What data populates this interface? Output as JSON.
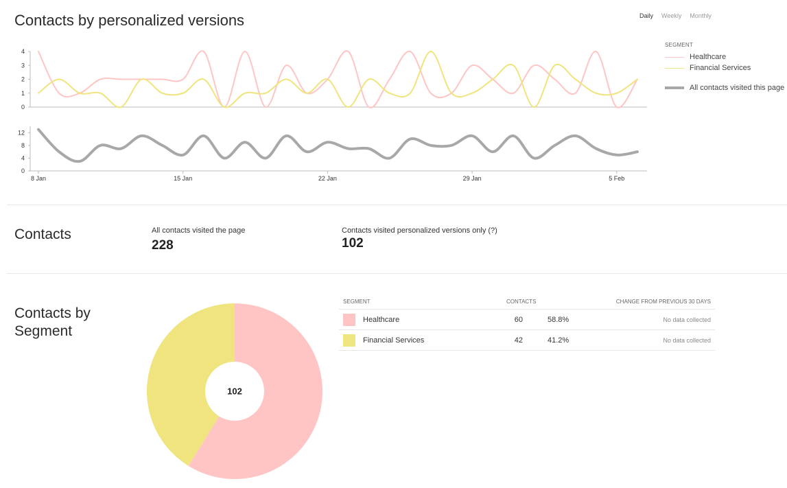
{
  "header": {
    "title": "Contacts by personalized versions",
    "periods": [
      {
        "label": "Daily",
        "active": true
      },
      {
        "label": "Weekly",
        "active": false
      },
      {
        "label": "Monthly",
        "active": false
      }
    ]
  },
  "legend": {
    "title": "SEGMENT",
    "healthcare": "Healthcare",
    "financial": "Financial Services",
    "all_contacts": "All contacts visited this page"
  },
  "colors": {
    "healthcare": "#ffc5c5",
    "financial": "#efe47d",
    "all_contacts": "#a8a8a8"
  },
  "chart_data": [
    {
      "type": "line",
      "x": [
        "8 Jan",
        "9 Jan",
        "10 Jan",
        "11 Jan",
        "12 Jan",
        "13 Jan",
        "14 Jan",
        "15 Jan",
        "16 Jan",
        "17 Jan",
        "18 Jan",
        "19 Jan",
        "20 Jan",
        "21 Jan",
        "22 Jan",
        "23 Jan",
        "24 Jan",
        "25 Jan",
        "26 Jan",
        "27 Jan",
        "28 Jan",
        "29 Jan",
        "30 Jan",
        "31 Jan",
        "1 Feb",
        "2 Feb",
        "3 Feb",
        "4 Feb",
        "5 Feb",
        "6 Feb"
      ],
      "x_ticks": [
        "8 Jan",
        "15 Jan",
        "22 Jan",
        "29 Jan",
        "5 Feb"
      ],
      "y_ticks": [
        0,
        1,
        2,
        3,
        4
      ],
      "ylim": [
        0,
        4
      ],
      "series": [
        {
          "name": "Healthcare",
          "values": [
            4,
            1,
            1,
            2,
            2,
            2,
            2,
            2,
            4,
            0,
            4,
            0,
            3,
            1,
            2,
            4,
            0,
            2,
            4,
            1,
            1,
            3,
            2,
            1,
            3,
            2,
            1,
            4,
            0,
            2
          ]
        },
        {
          "name": "Financial Services",
          "values": [
            1,
            2,
            1,
            1,
            0,
            2,
            1,
            1,
            2,
            0,
            1,
            1,
            2,
            1,
            2,
            0,
            2,
            1,
            1,
            4,
            1,
            1,
            2,
            3,
            0,
            3,
            2,
            1,
            1,
            2
          ]
        }
      ]
    },
    {
      "type": "line",
      "x": [
        "8 Jan",
        "9 Jan",
        "10 Jan",
        "11 Jan",
        "12 Jan",
        "13 Jan",
        "14 Jan",
        "15 Jan",
        "16 Jan",
        "17 Jan",
        "18 Jan",
        "19 Jan",
        "20 Jan",
        "21 Jan",
        "22 Jan",
        "23 Jan",
        "24 Jan",
        "25 Jan",
        "26 Jan",
        "27 Jan",
        "28 Jan",
        "29 Jan",
        "30 Jan",
        "31 Jan",
        "1 Feb",
        "2 Feb",
        "3 Feb",
        "4 Feb",
        "5 Feb",
        "6 Feb"
      ],
      "x_ticks": [
        "8 Jan",
        "15 Jan",
        "22 Jan",
        "29 Jan",
        "5 Feb"
      ],
      "y_ticks": [
        0,
        4,
        8,
        12
      ],
      "ylim": [
        0,
        14
      ],
      "series": [
        {
          "name": "All contacts visited this page",
          "values": [
            13,
            6,
            3,
            8,
            7,
            11,
            8,
            5,
            11,
            4,
            9,
            4,
            11,
            6,
            9,
            7,
            7,
            4,
            10,
            8,
            8,
            11,
            6,
            11,
            4,
            8,
            11,
            7,
            5,
            6
          ]
        }
      ]
    },
    {
      "type": "pie",
      "center_label": "102",
      "categories": [
        "Healthcare",
        "Financial Services"
      ],
      "values": [
        60,
        42
      ]
    }
  ],
  "contacts": {
    "title": "Contacts",
    "all_label": "All contacts visited the page",
    "all_value": "228",
    "personalized_label": "Contacts visited personalized versions only (?)",
    "personalized_value": "102"
  },
  "segment": {
    "title": "Contacts by Segment",
    "col_segment": "SEGMENT",
    "col_contacts": "CONTACTS",
    "col_change": "CHANGE FROM PREVIOUS 30 DAYS",
    "rows": [
      {
        "name": "Healthcare",
        "count": "60",
        "pct": "58.8%",
        "change": "No data collected"
      },
      {
        "name": "Financial Services",
        "count": "42",
        "pct": "41.2%",
        "change": "No data collected"
      }
    ]
  }
}
